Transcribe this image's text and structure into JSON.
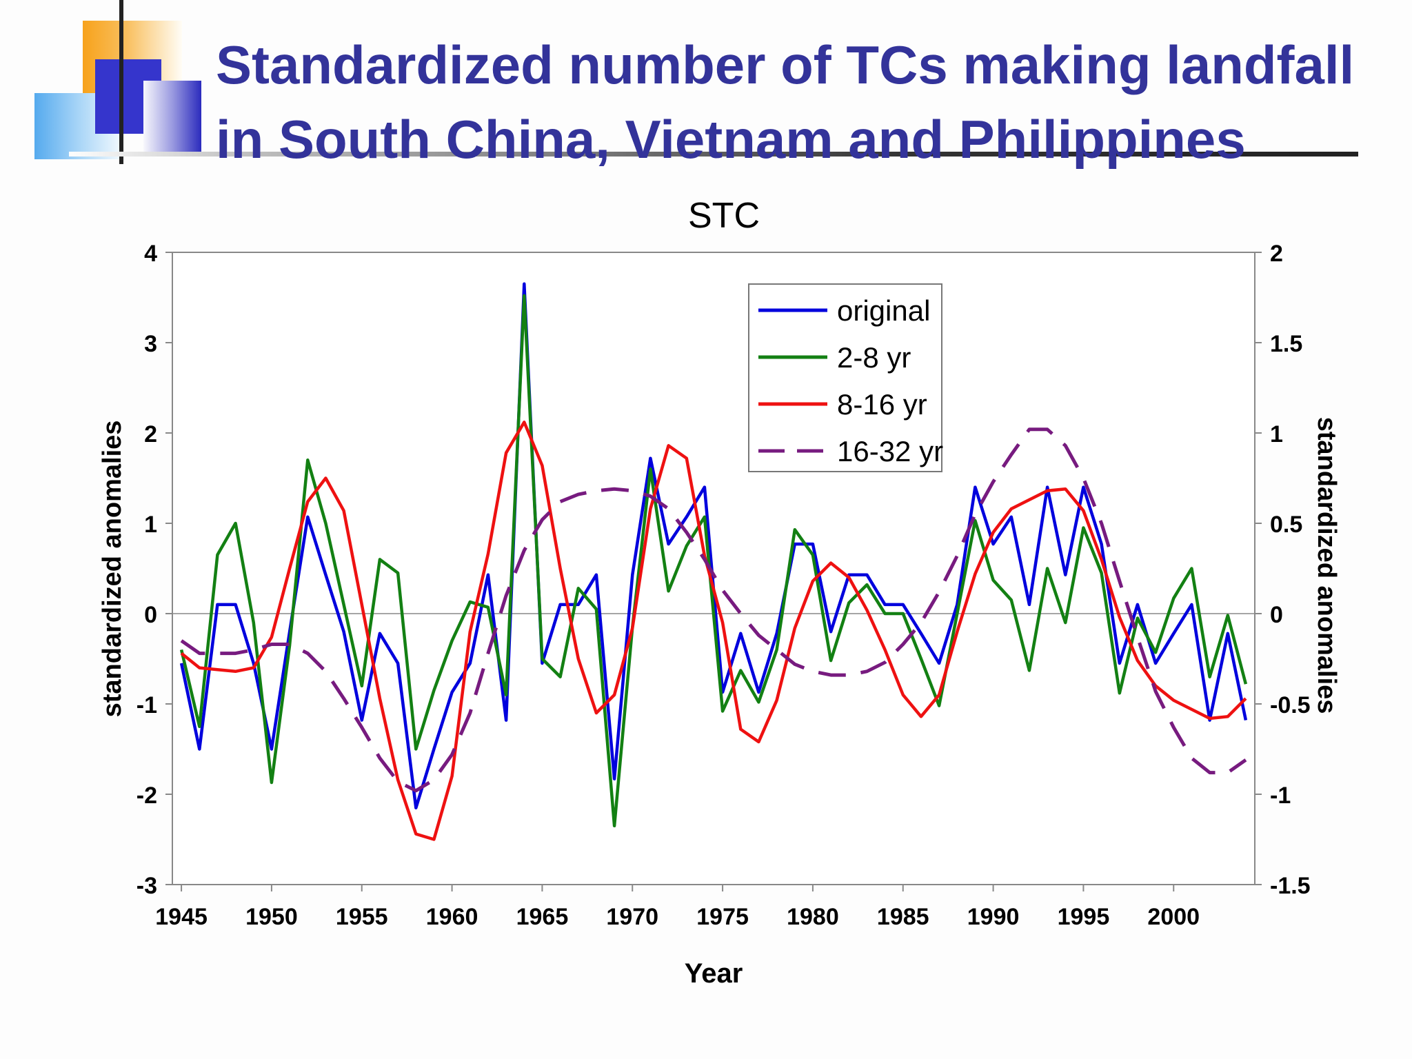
{
  "slide": {
    "title_line1": "Standardized number of TCs making landfall",
    "title_line2": "in South China, Vietnam and Philippines",
    "colors": {
      "title": "#33339a",
      "accent_orange": "#f7a21b",
      "accent_blue": "#3333cc",
      "rule": "#222222"
    }
  },
  "chart_data": {
    "type": "line",
    "title": "STC",
    "xlabel": "Year",
    "ylabel": "standardized anomalies",
    "y2label": "standardized anomalies",
    "xlim": [
      1944.5,
      2004.5
    ],
    "ylim": [
      -3,
      4
    ],
    "y2lim": [
      -1.5,
      2
    ],
    "x_ticks": [
      "1945",
      "1950",
      "1955",
      "1960",
      "1965",
      "1970",
      "1975",
      "1980",
      "1985",
      "1990",
      "1995",
      "2000"
    ],
    "y_ticks": [
      "4",
      "3",
      "2",
      "1",
      "0",
      "-1",
      "-2",
      "-3"
    ],
    "y2_ticks": [
      "2",
      "1.5",
      "1",
      "0.5",
      "0",
      "-0.5",
      "-1",
      "-1.5"
    ],
    "grid": false,
    "legend_position": "top-center",
    "x": [
      1945,
      1946,
      1947,
      1948,
      1949,
      1950,
      1951,
      1952,
      1953,
      1954,
      1955,
      1956,
      1957,
      1958,
      1959,
      1960,
      1961,
      1962,
      1963,
      1964,
      1965,
      1966,
      1967,
      1968,
      1969,
      1970,
      1971,
      1972,
      1973,
      1974,
      1975,
      1976,
      1977,
      1978,
      1979,
      1980,
      1981,
      1982,
      1983,
      1984,
      1985,
      1986,
      1987,
      1988,
      1989,
      1990,
      1991,
      1992,
      1993,
      1994,
      1995,
      1996,
      1997,
      1998,
      1999,
      2000,
      2001,
      2002,
      2003,
      2004
    ],
    "series": [
      {
        "name": "original",
        "axis": "left",
        "color": "#0000dd",
        "dash": false,
        "values": [
          -0.55,
          -1.5,
          0.1,
          0.1,
          -0.55,
          -1.5,
          -0.2,
          1.07,
          0.43,
          -0.2,
          -1.18,
          -0.22,
          -0.55,
          -2.15,
          -1.5,
          -0.87,
          -0.55,
          0.43,
          -1.18,
          3.65,
          -0.55,
          0.1,
          0.1,
          0.43,
          -1.83,
          0.43,
          1.72,
          0.77,
          1.07,
          1.4,
          -0.87,
          -0.22,
          -0.87,
          -0.22,
          0.77,
          0.77,
          -0.2,
          0.43,
          0.43,
          0.1,
          0.1,
          -0.22,
          -0.55,
          0.1,
          1.4,
          0.77,
          1.07,
          0.1,
          1.4,
          0.43,
          1.4,
          0.77,
          -0.55,
          0.1,
          -0.55,
          -0.22,
          0.1,
          -1.18,
          -0.22,
          -1.18
        ]
      },
      {
        "name": "2-8 yr",
        "axis": "left",
        "color": "#138013",
        "dash": false,
        "values": [
          -0.4,
          -1.25,
          0.65,
          1.0,
          -0.1,
          -1.87,
          -0.35,
          1.7,
          1.0,
          0.1,
          -0.8,
          0.6,
          0.45,
          -1.5,
          -0.85,
          -0.3,
          0.13,
          0.07,
          -0.9,
          3.52,
          -0.5,
          -0.7,
          0.28,
          0.05,
          -2.35,
          -0.15,
          1.6,
          0.25,
          0.75,
          1.07,
          -1.08,
          -0.63,
          -0.98,
          -0.4,
          0.93,
          0.65,
          -0.52,
          0.12,
          0.32,
          0.0,
          0.0,
          -0.5,
          -1.02,
          0.0,
          1.03,
          0.37,
          0.15,
          -0.63,
          0.5,
          -0.1,
          0.95,
          0.45,
          -0.88,
          -0.05,
          -0.43,
          0.17,
          0.5,
          -0.7,
          -0.02,
          -0.78
        ]
      },
      {
        "name": "8-16 yr",
        "axis": "right",
        "color": "#ee1111",
        "dash": false,
        "values": [
          -0.22,
          -0.3,
          -0.31,
          -0.32,
          -0.3,
          -0.13,
          0.25,
          0.62,
          0.75,
          0.57,
          0.05,
          -0.47,
          -0.92,
          -1.22,
          -1.25,
          -0.9,
          -0.1,
          0.33,
          0.89,
          1.06,
          0.82,
          0.25,
          -0.25,
          -0.55,
          -0.45,
          -0.08,
          0.58,
          0.93,
          0.86,
          0.32,
          -0.05,
          -0.64,
          -0.71,
          -0.48,
          -0.08,
          0.18,
          0.28,
          0.2,
          0.02,
          -0.2,
          -0.45,
          -0.57,
          -0.45,
          -0.1,
          0.22,
          0.45,
          0.58,
          0.63,
          0.68,
          0.69,
          0.57,
          0.3,
          -0.02,
          -0.26,
          -0.4,
          -0.48,
          -0.53,
          -0.58,
          -0.57,
          -0.47
        ]
      },
      {
        "name": "16-32 yr",
        "axis": "right",
        "color": "#771b7f",
        "dash": true,
        "values": [
          -0.15,
          -0.22,
          -0.22,
          -0.22,
          -0.2,
          -0.17,
          -0.17,
          -0.22,
          -0.32,
          -0.47,
          -0.63,
          -0.8,
          -0.93,
          -0.98,
          -0.92,
          -0.78,
          -0.55,
          -0.22,
          0.1,
          0.35,
          0.52,
          0.62,
          0.66,
          0.68,
          0.69,
          0.68,
          0.65,
          0.58,
          0.45,
          0.3,
          0.13,
          0.0,
          -0.12,
          -0.2,
          -0.28,
          -0.32,
          -0.34,
          -0.34,
          -0.32,
          -0.27,
          -0.17,
          -0.05,
          0.12,
          0.32,
          0.55,
          0.73,
          0.88,
          1.02,
          1.02,
          0.93,
          0.75,
          0.5,
          0.18,
          -0.13,
          -0.43,
          -0.63,
          -0.8,
          -0.88,
          -0.88,
          -0.81
        ]
      }
    ]
  }
}
